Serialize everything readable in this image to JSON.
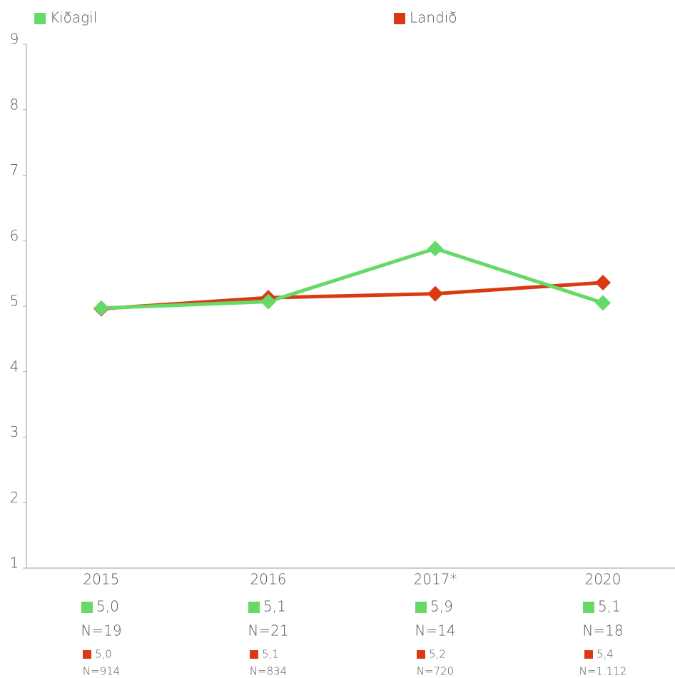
{
  "chart_data": {
    "type": "line",
    "categories": [
      "2015",
      "2016",
      "2017*",
      "2020"
    ],
    "series": [
      {
        "name": "Kiðagil",
        "color": "#66d966",
        "values": [
          4.97,
          5.07,
          5.88,
          5.05
        ],
        "value_labels": [
          "5,0",
          "5,1",
          "5,9",
          "5,1"
        ],
        "n_labels": [
          "N=19",
          "N=21",
          "N=14",
          "N=18"
        ]
      },
      {
        "name": "Landið",
        "color": "#d93a12",
        "values": [
          4.96,
          5.13,
          5.19,
          5.36
        ],
        "value_labels": [
          "5,0",
          "5,1",
          "5,2",
          "5,4"
        ],
        "n_labels": [
          "N=914",
          "N=834",
          "N=720",
          "N=1.112"
        ]
      }
    ],
    "ylim": [
      1,
      9
    ],
    "yticks": [
      1,
      2,
      3,
      4,
      5,
      6,
      7,
      8,
      9
    ],
    "grid": false,
    "legend": "top"
  }
}
